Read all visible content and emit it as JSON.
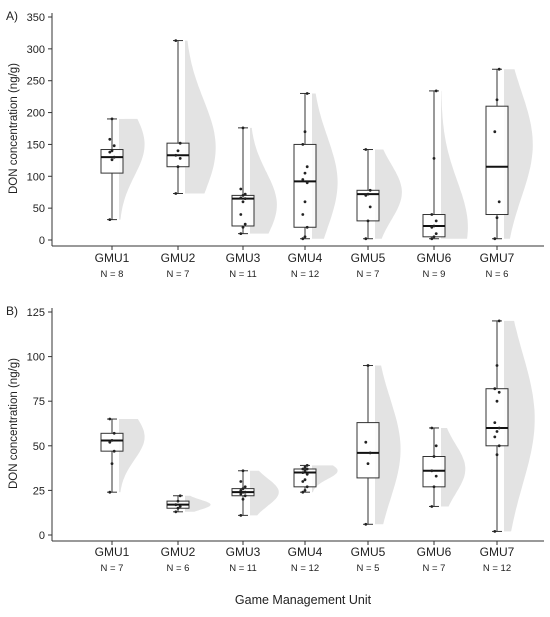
{
  "xaxis_title": "Game Management Unit",
  "chart_data": [
    {
      "type": "boxplot",
      "panel_label": "A)",
      "ylabel": "DON concentration (ng/g)",
      "ylim": [
        0,
        350
      ],
      "yticks": [
        0,
        50,
        100,
        150,
        200,
        250,
        300,
        350
      ],
      "categories": [
        "GMU1",
        "GMU2",
        "GMU3",
        "GMU4",
        "GMU5",
        "GMU6",
        "GMU7"
      ],
      "n_labels": [
        "N = 8",
        "N = 7",
        "N = 11",
        "N = 12",
        "N = 7",
        "N = 9",
        "N = 6"
      ],
      "boxes": [
        {
          "min": 32,
          "q1": 105,
          "median": 130,
          "q3": 142,
          "max": 190,
          "density_peak": 150,
          "density_width": 0.4,
          "points": [
            32,
            126,
            130,
            138,
            140,
            148,
            158,
            190
          ]
        },
        {
          "min": 73,
          "q1": 115,
          "median": 133,
          "q3": 152,
          "max": 313,
          "density_peak": 145,
          "density_width": 0.48,
          "points": [
            73,
            115,
            128,
            133,
            140,
            152,
            313
          ]
        },
        {
          "min": 10,
          "q1": 22,
          "median": 65,
          "q3": 70,
          "max": 176,
          "density_peak": 55,
          "density_width": 0.42,
          "points": [
            10,
            20,
            25,
            40,
            60,
            65,
            66,
            70,
            72,
            80,
            176
          ]
        },
        {
          "min": 2,
          "q1": 20,
          "median": 92,
          "q3": 150,
          "max": 230,
          "density_peak": 90,
          "density_width": 0.4,
          "points": [
            2,
            5,
            20,
            40,
            60,
            90,
            95,
            105,
            115,
            150,
            170,
            230
          ]
        },
        {
          "min": 2,
          "q1": 30,
          "median": 72,
          "q3": 78,
          "max": 142,
          "density_peak": 75,
          "density_width": 0.42,
          "points": [
            2,
            30,
            52,
            70,
            72,
            78,
            142
          ]
        },
        {
          "min": 2,
          "q1": 5,
          "median": 22,
          "q3": 40,
          "max": 234,
          "density_peak": 20,
          "density_width": 0.42,
          "points": [
            2,
            5,
            10,
            20,
            22,
            30,
            40,
            128,
            234
          ]
        },
        {
          "min": 2,
          "q1": 40,
          "median": 115,
          "q3": 210,
          "max": 268,
          "density_peak": 150,
          "density_width": 0.45,
          "points": [
            2,
            35,
            60,
            170,
            220,
            268
          ]
        }
      ]
    },
    {
      "type": "boxplot",
      "panel_label": "B)",
      "ylabel": "DON concentration (ng/g)",
      "ylim": [
        0,
        125
      ],
      "yticks": [
        0,
        25,
        50,
        75,
        100,
        125
      ],
      "categories": [
        "GMU1",
        "GMU2",
        "GMU3",
        "GMU4",
        "GMU5",
        "GMU6",
        "GMU7"
      ],
      "n_labels": [
        "N = 7",
        "N = 6",
        "N = 11",
        "N = 12",
        "N = 5",
        "N = 7",
        "N = 12"
      ],
      "boxes": [
        {
          "min": 24,
          "q1": 47,
          "median": 53,
          "q3": 57,
          "max": 65,
          "density_peak": 55,
          "density_width": 0.4,
          "points": [
            24,
            40,
            47,
            52,
            53,
            57,
            65
          ]
        },
        {
          "min": 13,
          "q1": 15,
          "median": 17,
          "q3": 19,
          "max": 22,
          "density_peak": 17,
          "density_width": 0.4,
          "points": [
            13,
            15,
            16,
            17,
            19,
            22
          ]
        },
        {
          "min": 11,
          "q1": 22,
          "median": 24,
          "q3": 26,
          "max": 36,
          "density_peak": 24,
          "density_width": 0.45,
          "points": [
            11,
            20,
            22,
            23,
            24,
            24,
            25,
            26,
            27,
            30,
            36
          ]
        },
        {
          "min": 24,
          "q1": 27,
          "median": 35,
          "q3": 37,
          "max": 39,
          "density_peak": 36,
          "density_width": 0.4,
          "points": [
            24,
            25,
            27,
            30,
            31,
            34,
            35,
            36,
            37,
            37,
            38,
            39
          ]
        },
        {
          "min": 6,
          "q1": 32,
          "median": 46,
          "q3": 63,
          "max": 95,
          "density_peak": 48,
          "density_width": 0.4,
          "points": [
            6,
            40,
            46,
            52,
            95
          ]
        },
        {
          "min": 16,
          "q1": 27,
          "median": 36,
          "q3": 44,
          "max": 60,
          "density_peak": 37,
          "density_width": 0.38,
          "points": [
            16,
            27,
            33,
            36,
            44,
            50,
            60
          ]
        },
        {
          "min": 2,
          "q1": 50,
          "median": 60,
          "q3": 82,
          "max": 120,
          "density_peak": 65,
          "density_width": 0.48,
          "points": [
            2,
            45,
            50,
            55,
            58,
            60,
            63,
            75,
            80,
            82,
            95,
            120
          ]
        }
      ]
    }
  ]
}
